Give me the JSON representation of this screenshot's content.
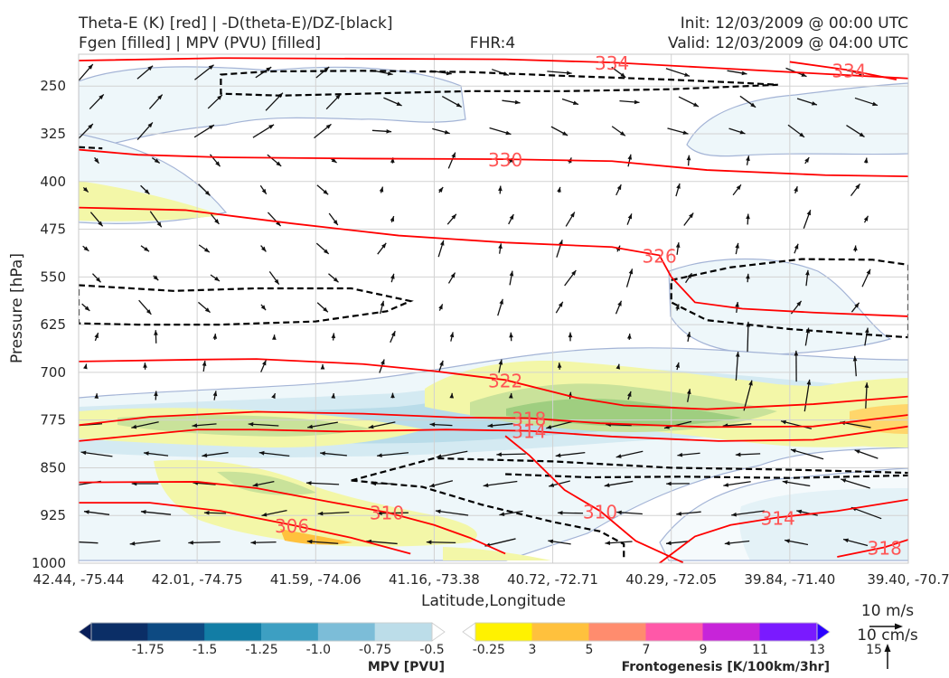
{
  "header": {
    "left_line1": "Theta-E (K) [red] | -D(theta-E)/DZ-[black]",
    "left_line2": "Fgen [filled] | MPV (PVU) [filled]",
    "center": "FHR:4",
    "right_line1": "Init: 12/03/2009 @ 00:00 UTC",
    "right_line2": "Valid: 12/03/2009 @ 04:00 UTC"
  },
  "chart_data": {
    "type": "cross-section",
    "xlabel": "Latitude,Longitude",
    "ylabel": "Pressure [hPa]",
    "x_ticks": [
      "42.44, -75.44",
      "42.01, -74.75",
      "41.59, -74.06",
      "41.16, -73.38",
      "40.72, -72.71",
      "40.29, -72.05",
      "39.84, -71.40",
      "39.40, -70.7"
    ],
    "y_ticks": [
      250,
      325,
      400,
      475,
      550,
      625,
      700,
      775,
      850,
      925,
      1000
    ],
    "ylim": [
      200,
      1000
    ],
    "y_inverted": true,
    "grid": true,
    "theta_e_color": "#ff0000",
    "theta_e_label_color": "#ff5555",
    "dthetae_dz_color": "#000000",
    "theta_e_contours": [
      {
        "label": "334",
        "points": [
          [
            0.0,
            210
          ],
          [
            1.2,
            206
          ],
          [
            2.4,
            207
          ],
          [
            3.6,
            208
          ],
          [
            4.5,
            213
          ],
          [
            5.3,
            221
          ],
          [
            6.2,
            230
          ],
          [
            6.8,
            236
          ],
          [
            7.0,
            238
          ]
        ]
      },
      {
        "label": "334",
        "points": [
          [
            6.0,
            212
          ],
          [
            6.5,
            225
          ],
          [
            6.9,
            240
          ]
        ]
      },
      {
        "label": "330",
        "points": [
          [
            0.0,
            350
          ],
          [
            0.5,
            358
          ],
          [
            1.2,
            362
          ],
          [
            2.4,
            364
          ],
          [
            3.6,
            365
          ],
          [
            4.5,
            368
          ],
          [
            5.3,
            382
          ],
          [
            6.3,
            390
          ],
          [
            7.0,
            392
          ]
        ]
      },
      {
        "label": "326",
        "points": [
          [
            0.0,
            441
          ],
          [
            0.9,
            445
          ],
          [
            1.8,
            466
          ],
          [
            2.7,
            485
          ],
          [
            3.6,
            496
          ],
          [
            4.5,
            503
          ],
          [
            4.9,
            516
          ],
          [
            5.0,
            550
          ],
          [
            5.2,
            590
          ],
          [
            5.6,
            600
          ],
          [
            6.2,
            606
          ],
          [
            7.0,
            612
          ]
        ]
      },
      {
        "label": "322",
        "points": [
          [
            0.0,
            683
          ],
          [
            1.0,
            680
          ],
          [
            1.5,
            679
          ],
          [
            2.4,
            687
          ],
          [
            3.0,
            698
          ],
          [
            3.6,
            712
          ],
          [
            4.2,
            740
          ],
          [
            4.6,
            752
          ],
          [
            5.3,
            758
          ],
          [
            6.2,
            750
          ],
          [
            7.0,
            738
          ]
        ]
      },
      {
        "label": "318",
        "points": [
          [
            0.0,
            783
          ],
          [
            0.6,
            770
          ],
          [
            1.5,
            762
          ],
          [
            2.4,
            765
          ],
          [
            3.2,
            771
          ],
          [
            3.8,
            772
          ],
          [
            4.4,
            780
          ],
          [
            5.3,
            786
          ],
          [
            6.2,
            785
          ],
          [
            7.0,
            767
          ]
        ]
      },
      {
        "label": "314",
        "points": [
          [
            0.0,
            808
          ],
          [
            1.0,
            790
          ],
          [
            1.5,
            790
          ],
          [
            2.2,
            793
          ],
          [
            3.1,
            790
          ],
          [
            3.8,
            792
          ],
          [
            4.5,
            801
          ],
          [
            5.4,
            808
          ],
          [
            6.2,
            806
          ],
          [
            7.0,
            785
          ]
        ]
      },
      {
        "label": "310",
        "points": [
          [
            0.0,
            873
          ],
          [
            1.0,
            872
          ],
          [
            1.5,
            882
          ],
          [
            2.1,
            903
          ],
          [
            2.6,
            920
          ],
          [
            3.0,
            940
          ],
          [
            3.3,
            960
          ],
          [
            3.6,
            985
          ]
        ]
      },
      {
        "label": "310",
        "points": [
          [
            3.6,
            800
          ],
          [
            3.8,
            830
          ],
          [
            4.1,
            885
          ],
          [
            4.4,
            918
          ],
          [
            4.7,
            965
          ],
          [
            5.1,
            999
          ]
        ]
      },
      {
        "label": "306",
        "points": [
          [
            0.0,
            905
          ],
          [
            0.6,
            905
          ],
          [
            1.2,
            918
          ],
          [
            1.8,
            940
          ],
          [
            2.3,
            960
          ],
          [
            2.8,
            985
          ]
        ]
      },
      {
        "label": "314",
        "points": [
          [
            4.9,
            1000
          ],
          [
            5.2,
            958
          ],
          [
            5.5,
            940
          ],
          [
            5.9,
            928
          ],
          [
            6.4,
            918
          ],
          [
            7.0,
            900
          ]
        ]
      },
      {
        "label": "318",
        "points": [
          [
            6.4,
            990
          ],
          [
            6.8,
            975
          ],
          [
            7.0,
            963
          ]
        ]
      }
    ],
    "dthetae_dz_contours": [
      {
        "points": [
          [
            1.2,
            232
          ],
          [
            1.6,
            227
          ],
          [
            2.4,
            226
          ],
          [
            3.3,
            228
          ],
          [
            4.1,
            234
          ],
          [
            5.0,
            240
          ],
          [
            5.6,
            245
          ],
          [
            5.9,
            248
          ],
          [
            5.0,
            255
          ],
          [
            4.1,
            258
          ],
          [
            3.3,
            258
          ],
          [
            2.4,
            262
          ],
          [
            1.7,
            265
          ],
          [
            1.2,
            262
          ]
        ]
      },
      {
        "points": [
          [
            0.0,
            563
          ],
          [
            0.8,
            572
          ],
          [
            1.5,
            568
          ],
          [
            2.3,
            568
          ],
          [
            2.8,
            588
          ],
          [
            2.6,
            604
          ],
          [
            2.0,
            620
          ],
          [
            1.2,
            625
          ],
          [
            0.5,
            625
          ],
          [
            0.0,
            623
          ]
        ]
      },
      {
        "points": [
          [
            5.0,
            555
          ],
          [
            5.5,
            535
          ],
          [
            6.1,
            522
          ],
          [
            6.7,
            523
          ],
          [
            7.0,
            531
          ],
          [
            7.0,
            645
          ],
          [
            6.6,
            640
          ],
          [
            6.0,
            632
          ],
          [
            5.3,
            618
          ],
          [
            5.0,
            590
          ]
        ]
      },
      {
        "points": [
          [
            2.3,
            870
          ],
          [
            3.0,
            835
          ],
          [
            4.0,
            840
          ],
          [
            5.0,
            850
          ],
          [
            6.0,
            853
          ],
          [
            7.0,
            858
          ]
        ]
      },
      {
        "points": [
          [
            2.3,
            870
          ],
          [
            2.9,
            880
          ],
          [
            3.4,
            908
          ],
          [
            4.0,
            935
          ],
          [
            4.4,
            950
          ],
          [
            4.6,
            970
          ],
          [
            4.6,
            995
          ]
        ]
      },
      {
        "points": [
          [
            3.6,
            860
          ],
          [
            4.3,
            865
          ],
          [
            5.1,
            864
          ],
          [
            6.0,
            866
          ],
          [
            7.0,
            862
          ]
        ]
      },
      {
        "points": [
          [
            0.0,
            346
          ],
          [
            0.2,
            348
          ]
        ]
      }
    ],
    "mpv_legend": {
      "label": "MPV [PVU]",
      "ticks": [
        "-1.75",
        "-1.5",
        "-1.25",
        "-1.0",
        "-0.75",
        "-0.5",
        "-0.25"
      ],
      "colors": [
        "#081d58",
        "#0b2e66",
        "#0d4a82",
        "#127da5",
        "#3d9fc2",
        "#7cbdd8",
        "#bcdde9",
        "#ffffff"
      ]
    },
    "fgen_legend": {
      "label": "Frontogenesis [K/100km/3hr]",
      "ticks": [
        "3",
        "5",
        "7",
        "9",
        "11",
        "13",
        "15"
      ],
      "colors": [
        "#ffffff",
        "#fff200",
        "#ffc13d",
        "#ff8c6e",
        "#ff58a8",
        "#c724d9",
        "#7a1aff",
        "#2b00ff"
      ]
    },
    "vector_key": {
      "horizontal": "10 m/s",
      "vertical": "10 cm/s"
    }
  }
}
